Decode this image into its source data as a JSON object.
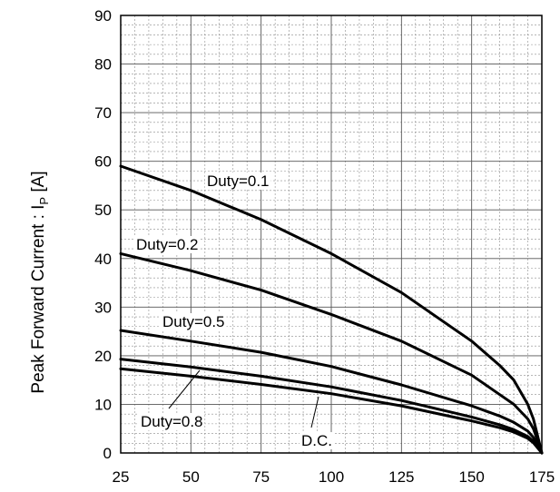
{
  "chart_data": {
    "type": "line",
    "title": "",
    "xlabel": "",
    "ylabel": "Peak Forward Current : I",
    "ylabel_sub": "P",
    "ylabel_unit": " [A]",
    "xlim": [
      25,
      175
    ],
    "ylim": [
      0,
      90
    ],
    "x_ticks": [
      25,
      50,
      75,
      100,
      125,
      150,
      175
    ],
    "y_ticks": [
      0,
      10,
      20,
      30,
      40,
      50,
      60,
      70,
      80,
      90
    ],
    "grid": true,
    "series": [
      {
        "name": "Duty=0.1",
        "x": [
          25,
          50,
          75,
          100,
          125,
          150,
          160,
          165,
          170,
          172,
          175
        ],
        "y": [
          59,
          54,
          48,
          41,
          33,
          23,
          18,
          15,
          10,
          7,
          0
        ]
      },
      {
        "name": "Duty=0.2",
        "x": [
          25,
          50,
          75,
          100,
          125,
          150,
          160,
          165,
          170,
          172,
          175
        ],
        "y": [
          41,
          37.5,
          33.5,
          28.5,
          23,
          16,
          12,
          10,
          7,
          5,
          0
        ]
      },
      {
        "name": "Duty=0.5",
        "x": [
          25,
          50,
          75,
          100,
          125,
          150,
          160,
          165,
          170,
          172,
          175
        ],
        "y": [
          25.2,
          23,
          20.7,
          17.8,
          14,
          9.7,
          7.6,
          6.3,
          4.5,
          3.2,
          0
        ]
      },
      {
        "name": "Duty=0.8",
        "x": [
          25,
          50,
          75,
          100,
          125,
          150,
          160,
          165,
          170,
          172,
          175
        ],
        "y": [
          19.3,
          17.7,
          15.8,
          13.6,
          10.8,
          7.4,
          5.8,
          4.8,
          3.4,
          2.4,
          0
        ]
      },
      {
        "name": "D.C.",
        "x": [
          25,
          50,
          75,
          100,
          125,
          150,
          160,
          165,
          170,
          172,
          175
        ],
        "y": [
          17.3,
          15.8,
          14.1,
          12.2,
          9.7,
          6.6,
          5.2,
          4.3,
          3,
          2.1,
          0
        ]
      }
    ],
    "annotations": [
      {
        "text": "Duty=0.1",
        "series": "Duty=0.1"
      },
      {
        "text": "Duty=0.2",
        "series": "Duty=0.2"
      },
      {
        "text": "Duty=0.5",
        "series": "Duty=0.5"
      },
      {
        "text": "Duty=0.8",
        "series": "Duty=0.8"
      },
      {
        "text": "D.C.",
        "series": "D.C."
      }
    ],
    "line_color": "#000000",
    "grid_color": "#8c8c8c"
  }
}
